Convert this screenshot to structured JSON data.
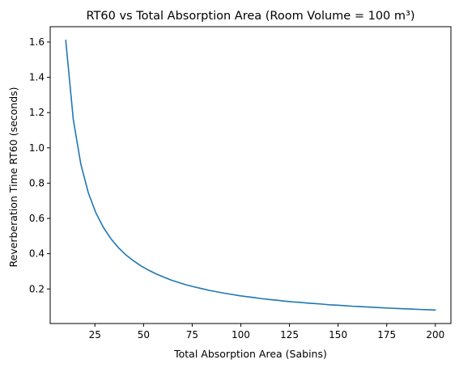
{
  "chart_data": {
    "type": "line",
    "title": "RT60 vs Total Absorption Area (Room Volume = 100 m³)",
    "xlabel": "Total Absorption Area (Sabins)",
    "ylabel": "Reverberation Time RT60 (seconds)",
    "xlim": [
      2,
      208
    ],
    "ylim": [
      0.004,
      1.687
    ],
    "xticks": [
      25,
      50,
      75,
      100,
      125,
      150,
      175,
      200
    ],
    "yticks": [
      0.2,
      0.4,
      0.6,
      0.8,
      1.0,
      1.2,
      1.4,
      1.6
    ],
    "grid": false,
    "series": [
      {
        "color": "#1f77b4",
        "x": [
          10,
          13.88,
          17.76,
          21.63,
          25.51,
          29.39,
          33.27,
          37.14,
          41.02,
          44.9,
          48.78,
          52.65,
          56.53,
          60.41,
          64.29,
          68.16,
          72.04,
          75.92,
          79.8,
          83.67,
          87.55,
          91.43,
          95.31,
          99.18,
          103.06,
          106.94,
          110.82,
          114.69,
          118.57,
          122.45,
          126.33,
          130.2,
          134.08,
          137.96,
          141.84,
          145.71,
          149.59,
          153.47,
          157.35,
          161.22,
          165.1,
          168.98,
          172.86,
          176.73,
          180.61,
          184.49,
          188.37,
          192.24,
          196.12,
          200
        ],
        "y": [
          1.61,
          1.16,
          0.907,
          0.744,
          0.631,
          0.548,
          0.484,
          0.433,
          0.392,
          0.359,
          0.33,
          0.306,
          0.285,
          0.267,
          0.25,
          0.236,
          0.223,
          0.212,
          0.202,
          0.192,
          0.184,
          0.176,
          0.169,
          0.162,
          0.156,
          0.151,
          0.145,
          0.14,
          0.136,
          0.131,
          0.127,
          0.124,
          0.12,
          0.117,
          0.114,
          0.11,
          0.108,
          0.105,
          0.102,
          0.1,
          0.0975,
          0.0953,
          0.0931,
          0.0911,
          0.0891,
          0.0873,
          0.0855,
          0.0837,
          0.0821,
          0.0805
        ]
      }
    ]
  }
}
